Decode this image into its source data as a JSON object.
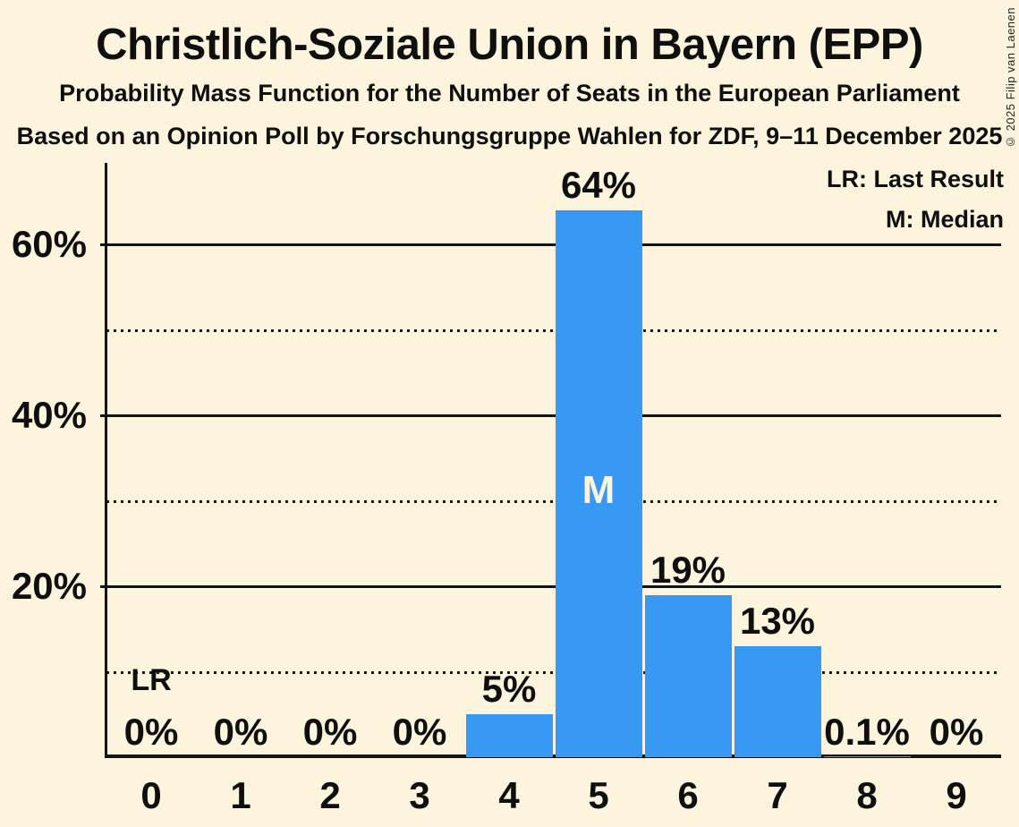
{
  "header": {
    "title": "Christlich-Soziale Union in Bayern (EPP)",
    "subtitle1": "Probability Mass Function for the Number of Seats in the European Parliament",
    "subtitle2": "Based on an Opinion Poll by Forschungsgruppe Wahlen for ZDF, 9–11 December 2025"
  },
  "legend": {
    "lr": "LR: Last Result",
    "m": "M: Median"
  },
  "copyright": "© 2025 Filip van Laenen",
  "colors": {
    "background": "#FCF4DC",
    "bar": "#3899F5",
    "text": "#0F0F0F",
    "grid": "#141414"
  },
  "chart_data": {
    "type": "bar",
    "title": "Christlich-Soziale Union in Bayern (EPP)",
    "categories": [
      "0",
      "1",
      "2",
      "3",
      "4",
      "5",
      "6",
      "7",
      "8",
      "9"
    ],
    "values": [
      0,
      0,
      0,
      0,
      5,
      64,
      19,
      13,
      0.1,
      0
    ],
    "bar_labels": [
      "0%",
      "0%",
      "0%",
      "0%",
      "5%",
      "64%",
      "19%",
      "13%",
      "0.1%",
      "0%"
    ],
    "ylim": [
      0,
      69.5
    ],
    "yticks": [
      {
        "value": 20,
        "label": "20%"
      },
      {
        "value": 40,
        "label": "40%"
      },
      {
        "value": 60,
        "label": "60%"
      }
    ],
    "solid_gridlines": [
      20,
      40,
      60
    ],
    "dotted_gridlines": [
      10,
      30,
      50
    ],
    "grid": true,
    "legend_position": "top-right",
    "median_category": "5",
    "median_marker": "M",
    "last_result_category": "0",
    "last_result_marker": "LR"
  }
}
